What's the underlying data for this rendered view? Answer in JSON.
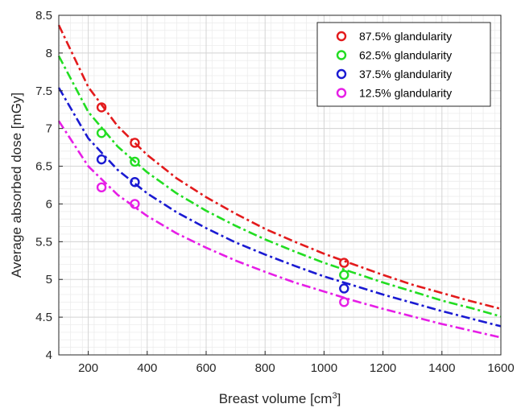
{
  "chart_data": {
    "type": "line",
    "xlabel": "Breast volume [cm",
    "xlabel_superscript": "3",
    "xlabel_suffix": "]",
    "ylabel": "Average absorbed dose [mGy]",
    "xlim": [
      100,
      1600
    ],
    "ylim": [
      4,
      8.5
    ],
    "x_ticks": [
      200,
      400,
      600,
      800,
      1000,
      1200,
      1400,
      1600
    ],
    "y_ticks": [
      4,
      4.5,
      5,
      5.5,
      6,
      6.5,
      7,
      7.5,
      8,
      8.5
    ],
    "x_tick_labels": [
      "200",
      "400",
      "600",
      "800",
      "1000",
      "1200",
      "1400",
      "1600"
    ],
    "y_tick_labels": [
      "4",
      "4.5",
      "5",
      "5.5",
      "6",
      "6.5",
      "7",
      "7.5",
      "8",
      "8.5"
    ],
    "grid": true,
    "minor_grid": true,
    "legend_position": "top-right",
    "series": [
      {
        "name": "87.5% glandularity",
        "color": "#e31a1c",
        "points": [
          [
            245,
            7.28
          ],
          [
            358,
            6.81
          ],
          [
            1068,
            5.22
          ]
        ],
        "fit_curve": [
          [
            100,
            8.37
          ],
          [
            200,
            7.55
          ],
          [
            300,
            7.03
          ],
          [
            400,
            6.65
          ],
          [
            500,
            6.34
          ],
          [
            600,
            6.09
          ],
          [
            700,
            5.87
          ],
          [
            800,
            5.67
          ],
          [
            900,
            5.5
          ],
          [
            1000,
            5.34
          ],
          [
            1100,
            5.2
          ],
          [
            1200,
            5.06
          ],
          [
            1300,
            4.93
          ],
          [
            1400,
            4.82
          ],
          [
            1500,
            4.71
          ],
          [
            1600,
            4.61
          ]
        ]
      },
      {
        "name": "62.5% glandularity",
        "color": "#22dd22",
        "points": [
          [
            245,
            6.94
          ],
          [
            358,
            6.56
          ],
          [
            1068,
            5.06
          ]
        ],
        "fit_curve": [
          [
            100,
            7.96
          ],
          [
            200,
            7.22
          ],
          [
            300,
            6.76
          ],
          [
            400,
            6.42
          ],
          [
            500,
            6.14
          ],
          [
            600,
            5.91
          ],
          [
            700,
            5.71
          ],
          [
            800,
            5.53
          ],
          [
            900,
            5.37
          ],
          [
            1000,
            5.22
          ],
          [
            1100,
            5.09
          ],
          [
            1200,
            4.96
          ],
          [
            1300,
            4.84
          ],
          [
            1400,
            4.72
          ],
          [
            1500,
            4.62
          ],
          [
            1600,
            4.51
          ]
        ]
      },
      {
        "name": "37.5% glandularity",
        "color": "#1a1ad2",
        "points": [
          [
            245,
            6.59
          ],
          [
            358,
            6.29
          ],
          [
            1068,
            4.88
          ]
        ],
        "fit_curve": [
          [
            100,
            7.54
          ],
          [
            200,
            6.87
          ],
          [
            300,
            6.45
          ],
          [
            400,
            6.14
          ],
          [
            500,
            5.89
          ],
          [
            600,
            5.68
          ],
          [
            700,
            5.49
          ],
          [
            800,
            5.33
          ],
          [
            900,
            5.18
          ],
          [
            1000,
            5.04
          ],
          [
            1100,
            4.92
          ],
          [
            1200,
            4.8
          ],
          [
            1300,
            4.69
          ],
          [
            1400,
            4.58
          ],
          [
            1500,
            4.48
          ],
          [
            1600,
            4.38
          ]
        ]
      },
      {
        "name": "12.5% glandularity",
        "color": "#e61ee6",
        "points": [
          [
            245,
            6.22
          ],
          [
            358,
            6.0
          ],
          [
            1068,
            4.7
          ]
        ],
        "fit_curve": [
          [
            100,
            7.1
          ],
          [
            200,
            6.5
          ],
          [
            300,
            6.12
          ],
          [
            400,
            5.84
          ],
          [
            500,
            5.61
          ],
          [
            600,
            5.42
          ],
          [
            700,
            5.25
          ],
          [
            800,
            5.1
          ],
          [
            900,
            4.96
          ],
          [
            1000,
            4.84
          ],
          [
            1100,
            4.72
          ],
          [
            1200,
            4.61
          ],
          [
            1300,
            4.51
          ],
          [
            1400,
            4.41
          ],
          [
            1500,
            4.32
          ],
          [
            1600,
            4.23
          ]
        ]
      }
    ]
  }
}
